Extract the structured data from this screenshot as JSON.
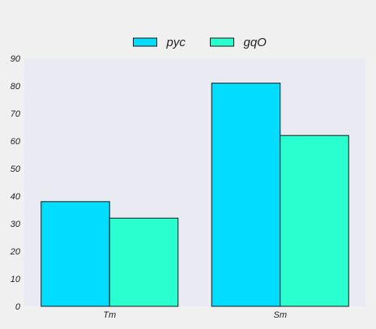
{
  "chart_data": {
    "type": "bar",
    "categories": [
      "Tm",
      "Sm"
    ],
    "series": [
      {
        "name": "pyc",
        "values": [
          38,
          81
        ],
        "color": "#00ddff"
      },
      {
        "name": "gqO",
        "values": [
          32,
          62
        ],
        "color": "#2affcf"
      }
    ],
    "ylim": [
      0,
      90
    ],
    "yticks": [
      0,
      10,
      20,
      30,
      40,
      50,
      60,
      70,
      80,
      90
    ],
    "grid": false,
    "legend": "top-center",
    "plot_background": "#eaeaf2",
    "bar_edge_color": "#1a1a1a"
  }
}
